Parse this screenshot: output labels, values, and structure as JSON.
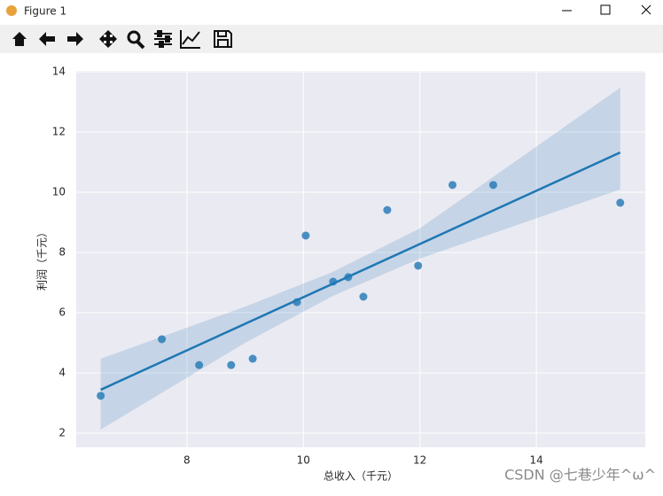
{
  "window": {
    "title": "Figure 1"
  },
  "watermark": "CSDN @七巷少年^ω^",
  "chart_data": {
    "type": "scatter",
    "xlabel": "总收入（千元）",
    "ylabel": "利润（千元）",
    "xlim": [
      6.1,
      15.87
    ],
    "ylim": [
      1.53,
      14.03
    ],
    "xticks": [
      8,
      10,
      12,
      14
    ],
    "yticks": [
      2,
      4,
      6,
      8,
      10,
      12,
      14
    ],
    "grid": true,
    "background": "#eaeaf2",
    "series": [
      {
        "color": "#1f77b4",
        "x": [
          6.52,
          7.57,
          8.21,
          8.76,
          9.13,
          9.89,
          10.04,
          10.51,
          10.77,
          11.03,
          11.44,
          11.97,
          12.56,
          13.26,
          15.44
        ],
        "y": [
          3.24,
          5.12,
          4.26,
          4.26,
          4.47,
          6.35,
          8.56,
          7.03,
          7.18,
          6.53,
          9.41,
          7.56,
          10.24,
          10.24,
          9.65
        ]
      }
    ],
    "fit": {
      "color": "#1f77b4",
      "x": [
        6.52,
        15.44
      ],
      "y": [
        3.44,
        11.32
      ]
    },
    "ci": {
      "color": "#1f77b4",
      "x": [
        6.52,
        9,
        10.5,
        12,
        15.44
      ],
      "lower": [
        2.12,
        5.0,
        6.55,
        7.8,
        10.09
      ],
      "upper": [
        4.47,
        6.2,
        7.35,
        8.8,
        13.47
      ]
    }
  }
}
